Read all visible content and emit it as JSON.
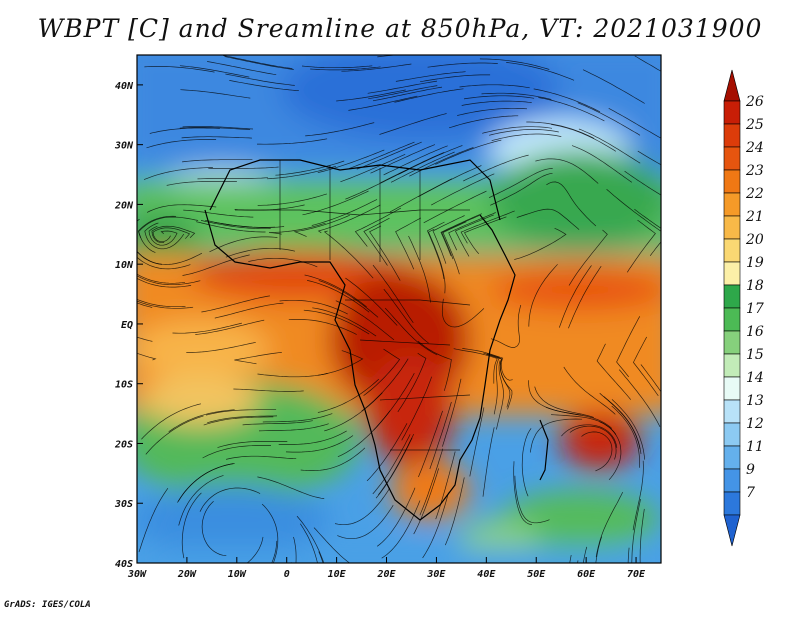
{
  "title": "WBPT [C] and Sreamline at 850hPa, VT: 2021031900",
  "credit": "GrADS: IGES/COLA",
  "map": {
    "lon_ticks": [
      "30W",
      "20W",
      "10W",
      "0",
      "10E",
      "20E",
      "30E",
      "40E",
      "50E",
      "60E",
      "70E"
    ],
    "lat_ticks": [
      "40N",
      "30N",
      "20N",
      "10N",
      "EQ",
      "10S",
      "20S",
      "30S",
      "40S"
    ],
    "lon_range": [
      -30,
      75
    ],
    "lat_range": [
      -40,
      45
    ]
  },
  "colorbar": {
    "labels": [
      "26",
      "25",
      "24",
      "23",
      "22",
      "21",
      "20",
      "19",
      "18",
      "17",
      "16",
      "15",
      "14",
      "13",
      "12",
      "11",
      "9",
      "7"
    ],
    "colors": [
      "#a50f00",
      "#c81e06",
      "#dc3c0a",
      "#e6550f",
      "#f07814",
      "#f59a28",
      "#f8b948",
      "#fad873",
      "#fcf0a8",
      "#2ea84a",
      "#4cba55",
      "#86d07c",
      "#c2ecb8",
      "#e8fbf6",
      "#b8e2f8",
      "#8ccaf2",
      "#64b0ec",
      "#4494e6",
      "#2c78dc",
      "#1f62d0"
    ],
    "units": "C"
  }
}
